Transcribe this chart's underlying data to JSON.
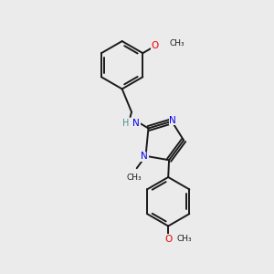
{
  "background_color": "#ebebeb",
  "bond_color": "#1a1a1a",
  "nitrogen_color": "#0000ee",
  "oxygen_color": "#ee0000",
  "figsize": [
    3.0,
    3.0
  ],
  "dpi": 100,
  "bond_lw": 1.4,
  "font_size_atom": 7.5,
  "font_size_group": 6.5,
  "xlim": [
    0,
    10
  ],
  "ylim": [
    0,
    10
  ]
}
